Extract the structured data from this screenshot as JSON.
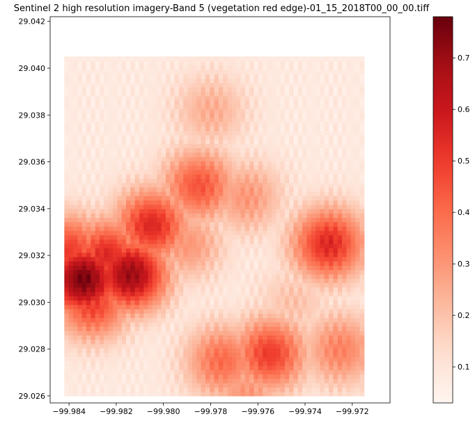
{
  "chart_data": {
    "type": "heatmap",
    "title": "Sentinel 2 high resolution imagery-Band 5 (vegetation red edge)-01_15_2018T00_00_00.tiff",
    "xlabel": "",
    "ylabel": "",
    "xlim": [
      -99.9848,
      -99.9704
    ],
    "ylim": [
      29.0257,
      29.0422
    ],
    "data_extent": {
      "x": [
        -99.9842,
        -99.9715
      ],
      "y": [
        29.026,
        29.0405
      ]
    },
    "x_ticks": [
      -99.984,
      -99.982,
      -99.98,
      -99.978,
      -99.976,
      -99.974,
      -99.972
    ],
    "x_tick_labels": [
      "−99.984",
      "−99.982",
      "−99.980",
      "−99.978",
      "−99.976",
      "−99.974",
      "−99.972"
    ],
    "y_ticks": [
      29.026,
      29.028,
      29.03,
      29.032,
      29.034,
      29.036,
      29.038,
      29.04,
      29.042
    ],
    "y_tick_labels": [
      "29.026",
      "29.028",
      "29.030",
      "29.032",
      "29.034",
      "29.036",
      "29.038",
      "29.040",
      "29.042"
    ],
    "colormap": "Reds",
    "color_range": [
      0.03,
      0.78
    ],
    "colorbar_ticks": [
      0.1,
      0.2,
      0.3,
      0.4,
      0.5,
      0.6,
      0.7
    ],
    "colorbar_tick_labels": [
      "0.1",
      "0.2",
      "0.3",
      "0.4",
      "0.5",
      "0.6",
      "0.7"
    ],
    "grid": false,
    "hotspots": [
      {
        "x": -99.9834,
        "y": 29.031,
        "value": 0.76
      },
      {
        "x": -99.9814,
        "y": 29.0312,
        "value": 0.7
      },
      {
        "x": -99.9824,
        "y": 29.032,
        "value": 0.55
      },
      {
        "x": -99.983,
        "y": 29.03,
        "value": 0.5
      },
      {
        "x": -99.984,
        "y": 29.0322,
        "value": 0.5
      },
      {
        "x": -99.9805,
        "y": 29.0333,
        "value": 0.55
      },
      {
        "x": -99.9785,
        "y": 29.035,
        "value": 0.45
      },
      {
        "x": -99.9765,
        "y": 29.0345,
        "value": 0.3
      },
      {
        "x": -99.973,
        "y": 29.0325,
        "value": 0.55
      },
      {
        "x": -99.9755,
        "y": 29.0278,
        "value": 0.5
      },
      {
        "x": -99.9775,
        "y": 29.0275,
        "value": 0.4
      },
      {
        "x": -99.9725,
        "y": 29.028,
        "value": 0.35
      },
      {
        "x": -99.979,
        "y": 29.0325,
        "value": 0.3
      },
      {
        "x": -99.978,
        "y": 29.0382,
        "value": 0.25
      },
      {
        "x": -99.9745,
        "y": 29.03,
        "value": 0.2
      },
      {
        "x": -99.9765,
        "y": 29.0262,
        "value": 0.3
      }
    ],
    "background_value": 0.08
  }
}
